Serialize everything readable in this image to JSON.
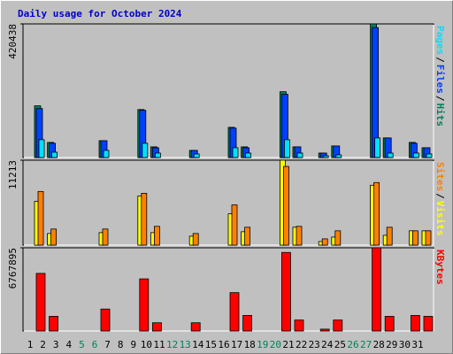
{
  "title": "Daily usage for October 2024",
  "legend_separator": "/",
  "categories": [
    1,
    2,
    3,
    4,
    5,
    6,
    7,
    8,
    9,
    10,
    11,
    12,
    13,
    14,
    15,
    16,
    17,
    18,
    19,
    20,
    21,
    22,
    23,
    24,
    25,
    26,
    27,
    28,
    29,
    30,
    31
  ],
  "category_colors": [
    "#000000",
    "#000000",
    "#000000",
    "#000000",
    "#00805c",
    "#00805c",
    "#000000",
    "#000000",
    "#000000",
    "#000000",
    "#000000",
    "#00805c",
    "#00805c",
    "#000000",
    "#000000",
    "#000000",
    "#000000",
    "#000000",
    "#00805c",
    "#00805c",
    "#000000",
    "#000000",
    "#000000",
    "#000000",
    "#000000",
    "#00805c",
    "#00805c",
    "#000000",
    "#000000",
    "#000000",
    "#000000"
  ],
  "chart_data": [
    {
      "type": "bar",
      "ylim": [
        0,
        420438
      ],
      "yticks": [
        420438
      ],
      "series": [
        {
          "name": "Hits",
          "color": "#00805c",
          "values": [
            162600,
            47600,
            0,
            0,
            0,
            53000,
            0,
            0,
            151000,
            33600,
            0,
            0,
            22400,
            0,
            0,
            95000,
            33600,
            0,
            0,
            207000,
            33600,
            0,
            14000,
            36400,
            0,
            0,
            420438,
            61700,
            0,
            47600,
            30800
          ]
        },
        {
          "name": "Files",
          "color": "#0040ff",
          "values": [
            154000,
            44800,
            0,
            0,
            0,
            53000,
            0,
            0,
            148600,
            30800,
            0,
            0,
            22400,
            0,
            0,
            92500,
            30800,
            0,
            0,
            199000,
            33600,
            0,
            14000,
            36400,
            0,
            0,
            409000,
            61700,
            0,
            44800,
            30800
          ]
        },
        {
          "name": "Pages",
          "color": "#00e0ff",
          "values": [
            56000,
            16800,
            0,
            0,
            0,
            22400,
            0,
            0,
            44800,
            14000,
            0,
            0,
            11200,
            0,
            0,
            30800,
            14000,
            0,
            0,
            56000,
            14000,
            0,
            5600,
            8400,
            0,
            0,
            61700,
            14000,
            0,
            14000,
            11200
          ]
        }
      ]
    },
    {
      "type": "bar",
      "ylim": [
        0,
        11213
      ],
      "yticks": [
        11213
      ],
      "series": [
        {
          "name": "Visits",
          "color": "#ffff00",
          "values": [
            5784,
            1534,
            0,
            0,
            0,
            1652,
            0,
            0,
            6492,
            1652,
            0,
            0,
            1180,
            0,
            0,
            4131,
            1770,
            0,
            0,
            11213,
            2361,
            0,
            472,
            1062,
            0,
            0,
            7908,
            1298,
            0,
            1889,
            1889
          ]
        },
        {
          "name": "Sites",
          "color": "#ff8000",
          "values": [
            7082,
            2125,
            0,
            0,
            0,
            2125,
            0,
            0,
            6846,
            2479,
            0,
            0,
            1534,
            0,
            0,
            5311,
            2361,
            0,
            0,
            10387,
            2479,
            0,
            826,
            1889,
            0,
            0,
            8262,
            2361,
            0,
            1889,
            1889
          ]
        }
      ]
    },
    {
      "type": "bar",
      "ylim": [
        0,
        6767895
      ],
      "yticks": [
        6767895
      ],
      "series": [
        {
          "name": "KBytes",
          "color": "#ff0000",
          "values": [
            4685000,
            1190000,
            0,
            0,
            0,
            1785000,
            0,
            0,
            4240000,
            669000,
            0,
            0,
            669000,
            0,
            0,
            3120000,
            1264000,
            0,
            0,
            6390000,
            892000,
            0,
            149000,
            892000,
            0,
            0,
            6767895,
            1190000,
            0,
            1264000,
            1190000
          ]
        }
      ]
    }
  ]
}
